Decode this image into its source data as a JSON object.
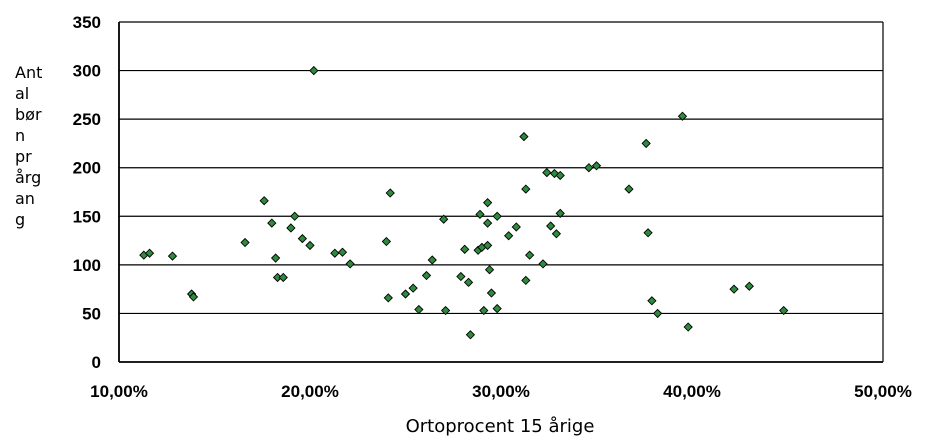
{
  "chart_data": {
    "type": "scatter",
    "title": "",
    "xlabel": "Ortoprocent 15 årige",
    "ylabel_lines": [
      "Ant",
      "al",
      "bør",
      "n",
      "pr",
      "årg",
      "an",
      "g"
    ],
    "xlim": [
      0.1,
      0.5
    ],
    "ylim": [
      0,
      350
    ],
    "x_ticks": [
      0.1,
      0.2,
      0.3,
      0.4,
      0.5
    ],
    "x_tick_labels": [
      "10,00%",
      "20,00%",
      "30,00%",
      "40,00%",
      "50,00%"
    ],
    "y_ticks": [
      0,
      50,
      100,
      150,
      200,
      250,
      300,
      350
    ],
    "y_tick_labels": [
      "0",
      "50",
      "100",
      "150",
      "200",
      "250",
      "300",
      "350"
    ],
    "grid": "horizontal",
    "marker_color": "#2e8b3e",
    "series": [
      {
        "points": [
          {
            "x": 0.113,
            "y": 110
          },
          {
            "x": 0.116,
            "y": 112
          },
          {
            "x": 0.128,
            "y": 109
          },
          {
            "x": 0.138,
            "y": 70
          },
          {
            "x": 0.139,
            "y": 67
          },
          {
            "x": 0.166,
            "y": 123
          },
          {
            "x": 0.176,
            "y": 166
          },
          {
            "x": 0.18,
            "y": 143
          },
          {
            "x": 0.182,
            "y": 107
          },
          {
            "x": 0.183,
            "y": 87
          },
          {
            "x": 0.186,
            "y": 87
          },
          {
            "x": 0.19,
            "y": 138
          },
          {
            "x": 0.192,
            "y": 150
          },
          {
            "x": 0.196,
            "y": 127
          },
          {
            "x": 0.2,
            "y": 120
          },
          {
            "x": 0.202,
            "y": 300
          },
          {
            "x": 0.213,
            "y": 112
          },
          {
            "x": 0.217,
            "y": 113
          },
          {
            "x": 0.221,
            "y": 101
          },
          {
            "x": 0.24,
            "y": 124
          },
          {
            "x": 0.241,
            "y": 66
          },
          {
            "x": 0.242,
            "y": 174
          },
          {
            "x": 0.25,
            "y": 70
          },
          {
            "x": 0.254,
            "y": 76
          },
          {
            "x": 0.257,
            "y": 54
          },
          {
            "x": 0.261,
            "y": 89
          },
          {
            "x": 0.264,
            "y": 105
          },
          {
            "x": 0.27,
            "y": 147
          },
          {
            "x": 0.271,
            "y": 53
          },
          {
            "x": 0.279,
            "y": 88
          },
          {
            "x": 0.281,
            "y": 116
          },
          {
            "x": 0.283,
            "y": 82
          },
          {
            "x": 0.284,
            "y": 28
          },
          {
            "x": 0.288,
            "y": 115
          },
          {
            "x": 0.289,
            "y": 152
          },
          {
            "x": 0.29,
            "y": 118
          },
          {
            "x": 0.291,
            "y": 53
          },
          {
            "x": 0.293,
            "y": 120
          },
          {
            "x": 0.293,
            "y": 164
          },
          {
            "x": 0.293,
            "y": 143
          },
          {
            "x": 0.294,
            "y": 95
          },
          {
            "x": 0.295,
            "y": 71
          },
          {
            "x": 0.298,
            "y": 150
          },
          {
            "x": 0.298,
            "y": 55
          },
          {
            "x": 0.304,
            "y": 130
          },
          {
            "x": 0.308,
            "y": 139
          },
          {
            "x": 0.312,
            "y": 232
          },
          {
            "x": 0.313,
            "y": 178
          },
          {
            "x": 0.313,
            "y": 84
          },
          {
            "x": 0.315,
            "y": 110
          },
          {
            "x": 0.322,
            "y": 101
          },
          {
            "x": 0.324,
            "y": 195
          },
          {
            "x": 0.326,
            "y": 140
          },
          {
            "x": 0.328,
            "y": 194
          },
          {
            "x": 0.329,
            "y": 132
          },
          {
            "x": 0.331,
            "y": 192
          },
          {
            "x": 0.331,
            "y": 153
          },
          {
            "x": 0.346,
            "y": 200
          },
          {
            "x": 0.35,
            "y": 202
          },
          {
            "x": 0.367,
            "y": 178
          },
          {
            "x": 0.376,
            "y": 225
          },
          {
            "x": 0.377,
            "y": 133
          },
          {
            "x": 0.379,
            "y": 63
          },
          {
            "x": 0.382,
            "y": 50
          },
          {
            "x": 0.395,
            "y": 253
          },
          {
            "x": 0.398,
            "y": 36
          },
          {
            "x": 0.422,
            "y": 75
          },
          {
            "x": 0.43,
            "y": 78
          },
          {
            "x": 0.448,
            "y": 53
          }
        ]
      }
    ]
  }
}
